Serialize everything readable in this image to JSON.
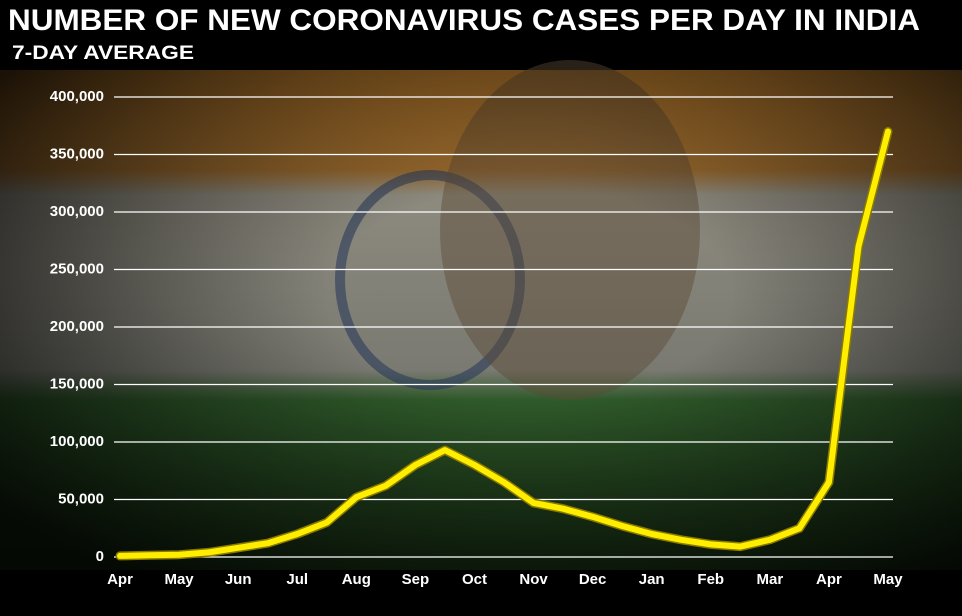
{
  "chart_data": {
    "type": "line",
    "title": "NUMBER OF NEW CORONAVIRUS CASES PER DAY IN INDIA",
    "subtitle": "7-DAY AVERAGE",
    "categories": [
      "Apr",
      null,
      "May",
      null,
      "Jun",
      null,
      "Jul",
      null,
      "Aug",
      null,
      "Sep",
      null,
      "Oct",
      null,
      "Nov",
      null,
      "Dec",
      null,
      "Jan",
      null,
      "Feb",
      null,
      "Mar",
      null,
      "Apr",
      null,
      "May"
    ],
    "values": [
      1000,
      1500,
      2000,
      4000,
      8000,
      12000,
      20000,
      30000,
      52000,
      62000,
      80000,
      93000,
      80000,
      65000,
      47000,
      42000,
      35000,
      27000,
      20000,
      15000,
      11000,
      9000,
      15000,
      25000,
      65000,
      270000,
      370000
    ],
    "color": "#ffee00",
    "ylim": [
      0,
      400000
    ],
    "yticks": [
      0,
      {
        "value": 50000,
        "label": "50,000"
      },
      {
        "value": 100000,
        "label": "100,000"
      },
      {
        "value": 150000,
        "label": "150,000"
      },
      {
        "value": 200000,
        "label": "200,000"
      },
      {
        "value": 250000,
        "label": "250,000"
      },
      {
        "value": 300000,
        "label": "300,000"
      },
      {
        "value": 350000,
        "label": "350,000"
      },
      {
        "value": 400000,
        "label": "400,000"
      }
    ],
    "grid": true
  }
}
